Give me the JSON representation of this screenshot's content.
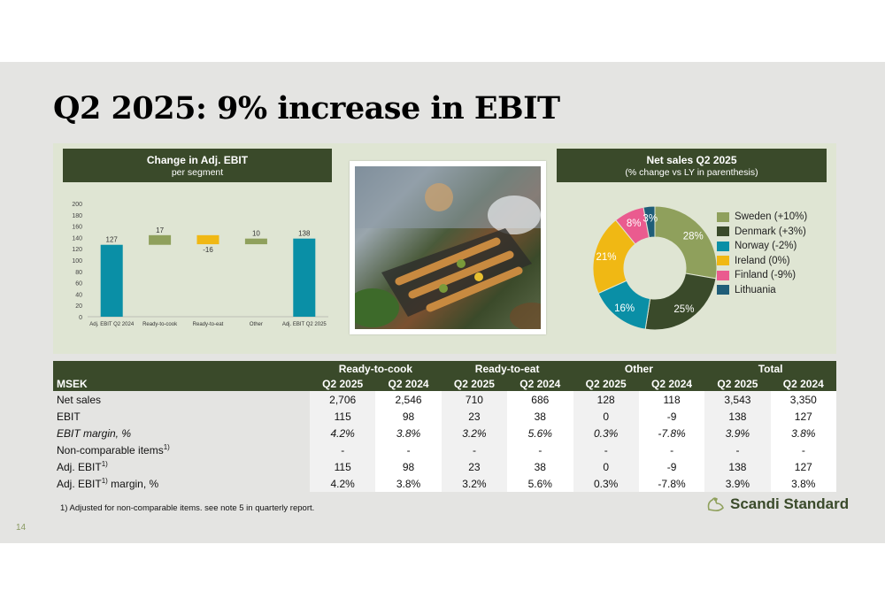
{
  "title": "Q2 2025: 9% increase in EBIT",
  "left_header": {
    "title": "Change in Adj. EBIT",
    "subtitle": "per segment"
  },
  "right_header": {
    "title": "Net sales Q2 2025",
    "subtitle": "(% change vs LY in parenthesis)"
  },
  "colors": {
    "dark_green": "#3a4a2a",
    "teal": "#0a8fa6",
    "gold": "#f0b814",
    "olive": "#8fa05c",
    "pink": "#ea5b8f",
    "dark_teal": "#1f5d78"
  },
  "chart_data": [
    {
      "type": "bar",
      "subtype": "waterfall",
      "categories": [
        "Adj. EBIT Q2 2024",
        "Ready-to-cook",
        "Ready-to-eat",
        "Other",
        "Adj. EBIT Q2 2025"
      ],
      "values": [
        127,
        17,
        -16,
        10,
        138
      ],
      "data_labels": [
        "127",
        "17",
        "-16",
        "10",
        "138"
      ],
      "bar_kinds": [
        "total",
        "delta",
        "delta",
        "delta",
        "total"
      ],
      "ylim": [
        0,
        200
      ],
      "yticks": [
        0,
        20,
        40,
        60,
        80,
        100,
        120,
        140,
        160,
        180,
        200
      ],
      "colors": [
        "#0a8fa6",
        "#8fa05c",
        "#f0b814",
        "#8fa05c",
        "#0a8fa6"
      ],
      "title": "",
      "xlabel": "",
      "ylabel": ""
    },
    {
      "type": "pie",
      "donut": true,
      "labels": [
        "Sweden (+10%)",
        "Denmark (+3%)",
        "Norway (-2%)",
        "Ireland (0%)",
        "Finland (-9%)",
        "Lithuania"
      ],
      "values": [
        28,
        25,
        16,
        21,
        8,
        3
      ],
      "data_labels": [
        "28%",
        "25%",
        "16%",
        "21%",
        "8%",
        "3%"
      ],
      "colors": [
        "#8fa05c",
        "#3a4a2a",
        "#0a8fa6",
        "#f0b814",
        "#ea5b8f",
        "#1f5d78"
      ],
      "legend_position": "right"
    }
  ],
  "table": {
    "unit_label": "MSEK",
    "groups": [
      "Ready-to-cook",
      "Ready-to-eat",
      "Other",
      "Total"
    ],
    "periods": [
      "Q2 2025",
      "Q2 2024",
      "Q2 2025",
      "Q2 2024",
      "Q2 2025",
      "Q2 2024",
      "Q2 2025",
      "Q2 2024"
    ],
    "rows": [
      {
        "label": "Net sales",
        "sup": "",
        "suffix": "",
        "italic": false,
        "values": [
          "2,706",
          "2,546",
          "710",
          "686",
          "128",
          "118",
          "3,543",
          "3,350"
        ]
      },
      {
        "label": "EBIT",
        "sup": "",
        "suffix": "",
        "italic": false,
        "values": [
          "115",
          "98",
          "23",
          "38",
          "0",
          "-9",
          "138",
          "127"
        ]
      },
      {
        "label": "EBIT margin, %",
        "sup": "",
        "suffix": "",
        "italic": true,
        "values": [
          "4.2%",
          "3.8%",
          "3.2%",
          "5.6%",
          "0.3%",
          "-7.8%",
          "3.9%",
          "3.8%"
        ]
      },
      {
        "label": "Non-comparable items",
        "sup": "1)",
        "suffix": "",
        "italic": false,
        "values": [
          "-",
          "-",
          "-",
          "-",
          "-",
          "-",
          "-",
          "-"
        ]
      },
      {
        "label": "Adj. EBIT",
        "sup": "1)",
        "suffix": "",
        "italic": false,
        "values": [
          "115",
          "98",
          "23",
          "38",
          "0",
          "-9",
          "138",
          "127"
        ]
      },
      {
        "label": "Adj. EBIT",
        "sup": "1)",
        "suffix": " margin, %",
        "italic": false,
        "values": [
          "4.2%",
          "3.8%",
          "3.2%",
          "5.6%",
          "0.3%",
          "-7.8%",
          "3.9%",
          "3.8%"
        ]
      }
    ]
  },
  "footnote": "1)    Adjusted for non-comparable items. see note 5 in quarterly report.",
  "page_number": "14",
  "logo_text": "Scandi Standard"
}
